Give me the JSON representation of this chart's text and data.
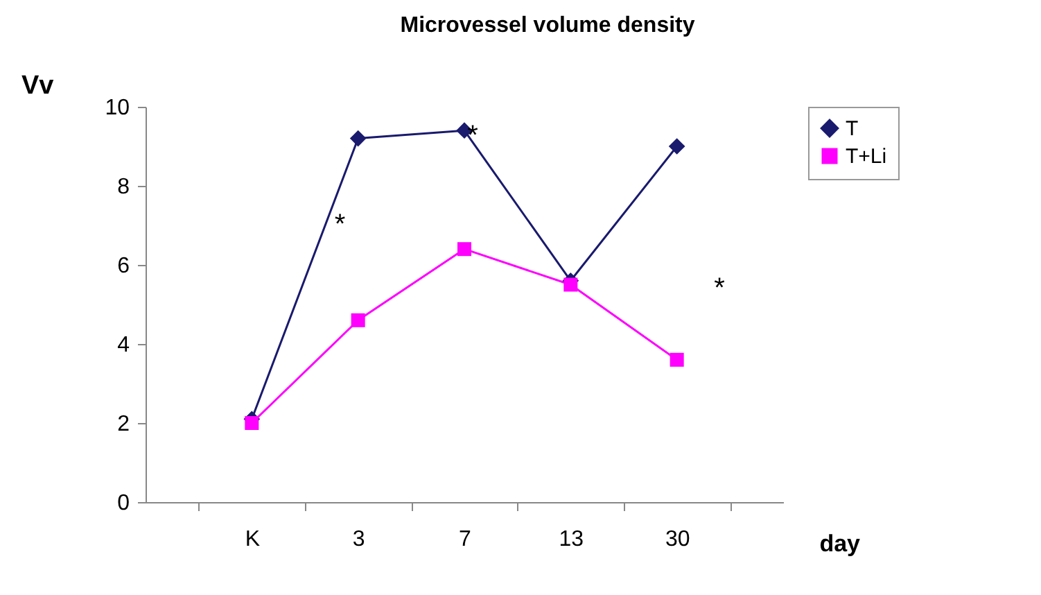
{
  "chart_data": {
    "type": "line",
    "title": "Microvessel volume density",
    "xlabel": "day",
    "ylabel": "Vv",
    "categories": [
      "K",
      "3",
      "7",
      "13",
      "30"
    ],
    "series": [
      {
        "name": "T",
        "color": "#1a1a6e",
        "marker": "diamond",
        "values": [
          2.1,
          9.2,
          9.4,
          5.6,
          9.0
        ]
      },
      {
        "name": "T+Li",
        "color": "#ff00ff",
        "marker": "square",
        "values": [
          2.0,
          4.6,
          6.4,
          5.5,
          3.6
        ]
      }
    ],
    "ylim": [
      0,
      10
    ],
    "yticks": [
      0,
      2,
      4,
      6,
      8,
      10
    ],
    "grid": false,
    "legend": "right",
    "line_style": "solid",
    "annotations": [
      "*",
      {
        "text": "*",
        "x": "7",
        "y": 9.4
      },
      "*"
    ]
  }
}
